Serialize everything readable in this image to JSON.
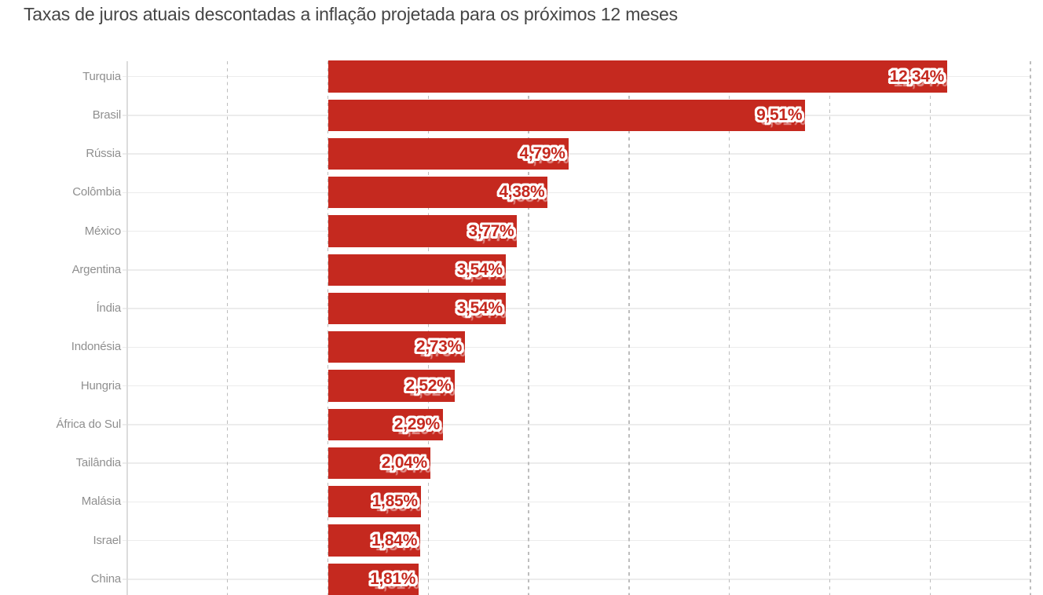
{
  "title": "Taxas de juros atuais descontadas a inflação projetada para os próximos 12 meses",
  "chart_data": {
    "type": "bar",
    "orientation": "horizontal",
    "title": "Taxas de juros atuais descontadas a inflação projetada para os próximos 12 meses",
    "xlabel": "",
    "ylabel": "",
    "unit": "%",
    "decimal_separator": ",",
    "categories": [
      "Turquia",
      "Brasil",
      "Rússia",
      "Colômbia",
      "México",
      "Argentina",
      "Índia",
      "Indonésia",
      "Hungria",
      "África do Sul",
      "Tailândia",
      "Malásia",
      "Israel",
      "China"
    ],
    "values": [
      12.34,
      9.51,
      4.79,
      4.38,
      3.77,
      3.54,
      3.54,
      2.73,
      2.52,
      2.29,
      2.04,
      1.85,
      1.84,
      1.81
    ],
    "value_labels": [
      "12,34%",
      "9,51%",
      "4,79%",
      "4,38%",
      "3,77%",
      "3,54%",
      "3,54%",
      "2,73%",
      "2,52%",
      "2,29%",
      "2,04%",
      "1,85%",
      "1,84%",
      "1,81%"
    ],
    "xlim": [
      -4,
      14
    ],
    "x_gridline_values": [
      -4,
      -2,
      0,
      2,
      4,
      6,
      8,
      10,
      12,
      14
    ],
    "grid": "dashed vertical gridlines every 2%, solid light horizontal line per category, no x tick labels visible",
    "legend": "none",
    "value_label_position": "inside-bar-end"
  },
  "colors": {
    "bar": "#c5291f",
    "title_text": "#464646",
    "category_label_text": "#8f8f8f",
    "value_label_text": "#c5291f",
    "value_label_outline": "#ffffff",
    "row_line": "#ececec",
    "axis_line": "#dcdcdc",
    "dashed_gridline": "#bdbdbd",
    "background": "#ffffff"
  }
}
